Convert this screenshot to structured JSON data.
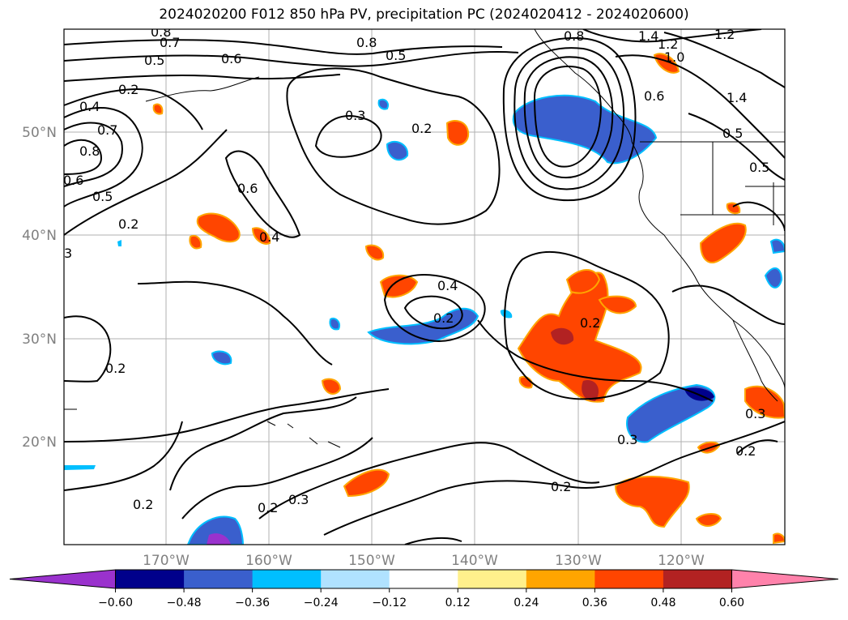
{
  "title": "2024020200 F012 850 hPa PV, precipitation PC (2024020412 - 2024020600)",
  "lat_labels": [
    "50°N",
    "40°N",
    "30°N",
    "20°N"
  ],
  "lon_labels": [
    "170°W",
    "160°W",
    "150°W",
    "140°W",
    "130°W",
    "120°W"
  ],
  "colorbar": {
    "colors": [
      "#9a32cd",
      "#00008b",
      "#3a5fcd",
      "#00bfff",
      "#b0e2ff",
      "#ffffff",
      "#fff08c",
      "#ffa500",
      "#ff4500",
      "#b22222",
      "#ff82ab"
    ],
    "tick_labels": [
      "−0.60",
      "−0.48",
      "−0.36",
      "−0.24",
      "−0.12",
      "0.12",
      "0.24",
      "0.36",
      "0.48",
      "0.60"
    ]
  },
  "contour_labels": [
    "0.8",
    "0.7",
    "0.5",
    "0.2",
    "0.4",
    "0.7",
    "0.8",
    "0.6",
    "0.5",
    "0.2",
    "3",
    "0.6",
    "0.6",
    "0.4",
    "0.3",
    "0.2",
    "0.8",
    "0.5",
    "0.8",
    "1.4",
    "1.2",
    "1.2",
    "1.0",
    "0.6",
    "1.4",
    "0.5",
    "0.5",
    "0.4",
    "0.2",
    "0.2",
    "0.2",
    "0.3",
    "0.2",
    "0.3",
    "0.2",
    "0.2",
    "0.3",
    "0.2"
  ]
}
